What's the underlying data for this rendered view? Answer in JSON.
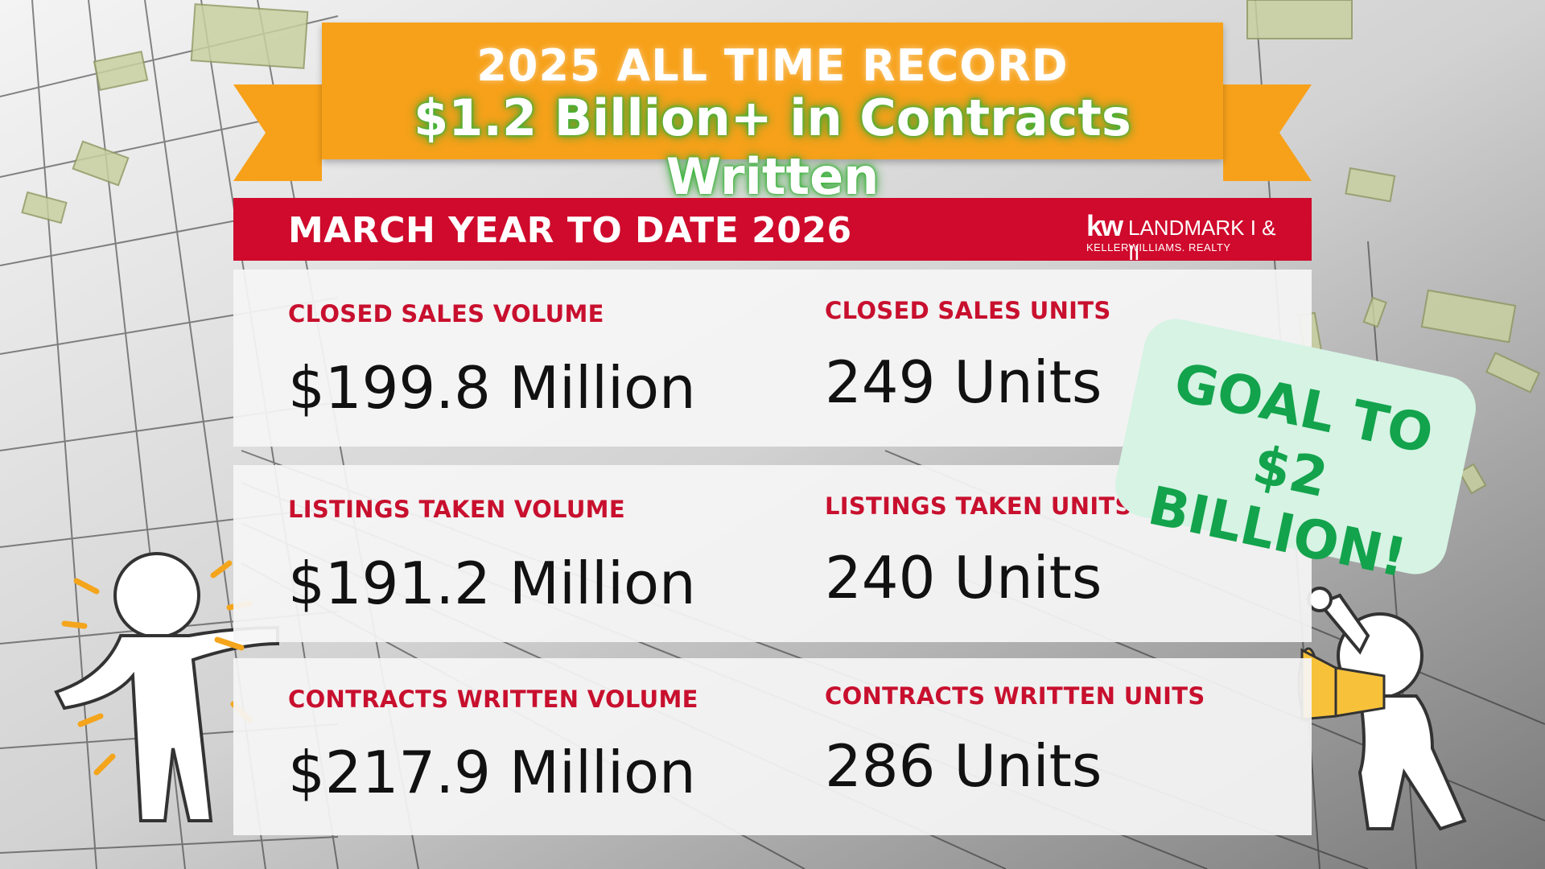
{
  "banner": {
    "line1": "2025 ALL TIME RECORD",
    "line2": "$1.2 Billion+ in Contracts Written"
  },
  "header": {
    "title": "MARCH YEAR TO DATE 2026",
    "logo_kw": "kw",
    "logo_name": "LANDMARK I & II",
    "logo_sub": "KELLERWILLIAMS. REALTY"
  },
  "stats": [
    {
      "label": "CLOSED SALES VOLUME",
      "value": "$199.8 Million"
    },
    {
      "label": "CLOSED SALES UNITS",
      "value": "249 Units"
    },
    {
      "label": "LISTINGS TAKEN VOLUME",
      "value": "$191.2 Million"
    },
    {
      "label": "LISTINGS TAKEN UNITS",
      "value": "240 Units"
    },
    {
      "label": "CONTRACTS WRITTEN VOLUME",
      "value": "$217.9 Million"
    },
    {
      "label": "CONTRACTS WRITTEN UNITS",
      "value": "286 Units"
    }
  ],
  "goal": {
    "line1": "GOAL TO",
    "line2": "$2 BILLION!"
  },
  "colors": {
    "banner": "#f7a11a",
    "header": "#cf0a2c",
    "label": "#c8102e",
    "goal_text": "#13a34c",
    "goal_bg": "#d6f3e4"
  }
}
